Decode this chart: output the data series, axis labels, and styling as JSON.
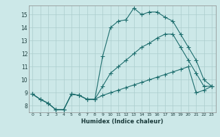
{
  "xlabel": "Humidex (Indice chaleur)",
  "ylabel": "",
  "bg_color": "#cce8e8",
  "grid_color": "#aacccc",
  "line_color": "#1a6b6b",
  "xlim": [
    -0.5,
    23.5
  ],
  "ylim": [
    7.5,
    15.7
  ],
  "xticks": [
    0,
    1,
    2,
    3,
    4,
    5,
    6,
    7,
    8,
    9,
    10,
    11,
    12,
    13,
    14,
    15,
    16,
    17,
    18,
    19,
    20,
    21,
    22,
    23
  ],
  "yticks": [
    8,
    9,
    10,
    11,
    12,
    13,
    14,
    15
  ],
  "line_top_x": [
    0,
    1,
    2,
    3,
    4,
    5,
    6,
    7,
    8,
    9,
    10,
    11,
    12,
    13,
    14,
    15,
    16,
    17,
    18,
    19,
    20,
    21,
    22,
    23
  ],
  "line_top_y": [
    8.9,
    8.5,
    8.2,
    7.7,
    7.7,
    8.9,
    8.8,
    8.5,
    8.5,
    11.8,
    14.0,
    14.5,
    14.6,
    15.5,
    15.0,
    15.2,
    15.2,
    14.8,
    14.5,
    13.5,
    12.5,
    11.5,
    10.0,
    9.5
  ],
  "line_mid_x": [
    0,
    1,
    2,
    3,
    4,
    5,
    6,
    7,
    8,
    9,
    10,
    11,
    12,
    13,
    14,
    15,
    16,
    17,
    18,
    19,
    20,
    21,
    22,
    23
  ],
  "line_mid_y": [
    8.9,
    8.5,
    8.2,
    7.7,
    7.7,
    8.9,
    8.8,
    8.5,
    8.5,
    9.5,
    10.5,
    11.0,
    11.5,
    12.0,
    12.5,
    12.8,
    13.2,
    13.5,
    13.5,
    12.5,
    11.5,
    10.5,
    9.5,
    9.5
  ],
  "line_bot_x": [
    0,
    1,
    2,
    3,
    4,
    5,
    6,
    7,
    8,
    9,
    10,
    11,
    12,
    13,
    14,
    15,
    16,
    17,
    18,
    19,
    20,
    21,
    22,
    23
  ],
  "line_bot_y": [
    8.9,
    8.5,
    8.2,
    7.7,
    7.7,
    8.9,
    8.8,
    8.5,
    8.5,
    8.8,
    9.0,
    9.2,
    9.4,
    9.6,
    9.8,
    10.0,
    10.2,
    10.4,
    10.6,
    10.8,
    11.0,
    9.0,
    9.2,
    9.5
  ]
}
